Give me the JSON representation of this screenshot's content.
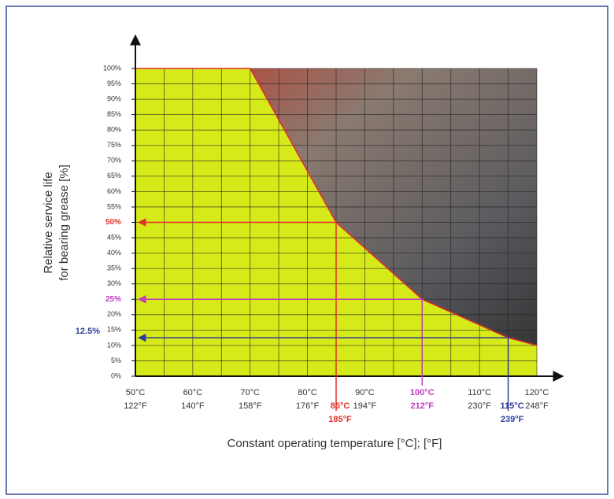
{
  "chart_data": {
    "type": "area",
    "y_title_lines": [
      "Relative service life",
      "for bearing grease [%]"
    ],
    "x_title": "Constant operating temperature [°C]; [°F]",
    "x": [
      50,
      70,
      85,
      100,
      115,
      120
    ],
    "values": [
      100,
      100,
      50,
      25,
      12.5,
      10
    ],
    "color": "#d6ea1a",
    "line_color": "#e0302a",
    "xlim": [
      50,
      120
    ],
    "ylim": [
      0,
      100
    ],
    "xticks": [
      {
        "value": 50,
        "label": "50°C"
      },
      {
        "value": 60,
        "label": "60°C"
      },
      {
        "value": 70,
        "label": "70°C"
      },
      {
        "value": 80,
        "label": "80°C"
      },
      {
        "value": 90,
        "label": "90°C"
      },
      {
        "value": 100,
        "label": "100°C"
      },
      {
        "value": 110,
        "label": "110°C"
      },
      {
        "value": 120,
        "label": "120°C"
      }
    ],
    "xtick_labels_f": [
      "122°F",
      "140°F",
      "158°F",
      "176°F",
      "194°F",
      "212°F",
      "230°F",
      "248°F"
    ],
    "xgrid": [
      55,
      65,
      75,
      85,
      95,
      105,
      115
    ],
    "yticks": [
      {
        "value": 0,
        "label": "0%"
      },
      {
        "value": 5,
        "label": "5%"
      },
      {
        "value": 10,
        "label": "10%"
      },
      {
        "value": 15,
        "label": "15%"
      },
      {
        "value": 20,
        "label": "20%"
      },
      {
        "value": 25,
        "label": "25%"
      },
      {
        "value": 30,
        "label": "30%"
      },
      {
        "value": 35,
        "label": "35%"
      },
      {
        "value": 40,
        "label": "40%"
      },
      {
        "value": 45,
        "label": "45%"
      },
      {
        "value": 50,
        "label": "50%"
      },
      {
        "value": 55,
        "label": "55%"
      },
      {
        "value": 60,
        "label": "60%"
      },
      {
        "value": 65,
        "label": "65%"
      },
      {
        "value": 70,
        "label": "70%"
      },
      {
        "value": 75,
        "label": "75%"
      },
      {
        "value": 80,
        "label": "80%"
      },
      {
        "value": 85,
        "label": "85%"
      },
      {
        "value": 90,
        "label": "90%"
      },
      {
        "value": 95,
        "label": "95%"
      },
      {
        "value": 100,
        "label": "100%"
      }
    ],
    "grid": true,
    "annotations": [
      {
        "x": 85,
        "y": 50,
        "color": "#e0302a",
        "x_label": "85°C",
        "x_label_f": "185°F"
      },
      {
        "x": 100,
        "y": 25,
        "color": "#c03cc0"
      },
      {
        "x": 115,
        "y": 12.5,
        "color": "#2c3d9c",
        "x_label": "115°C",
        "x_label_f": "239°F",
        "y_label": "12.5%"
      }
    ]
  }
}
